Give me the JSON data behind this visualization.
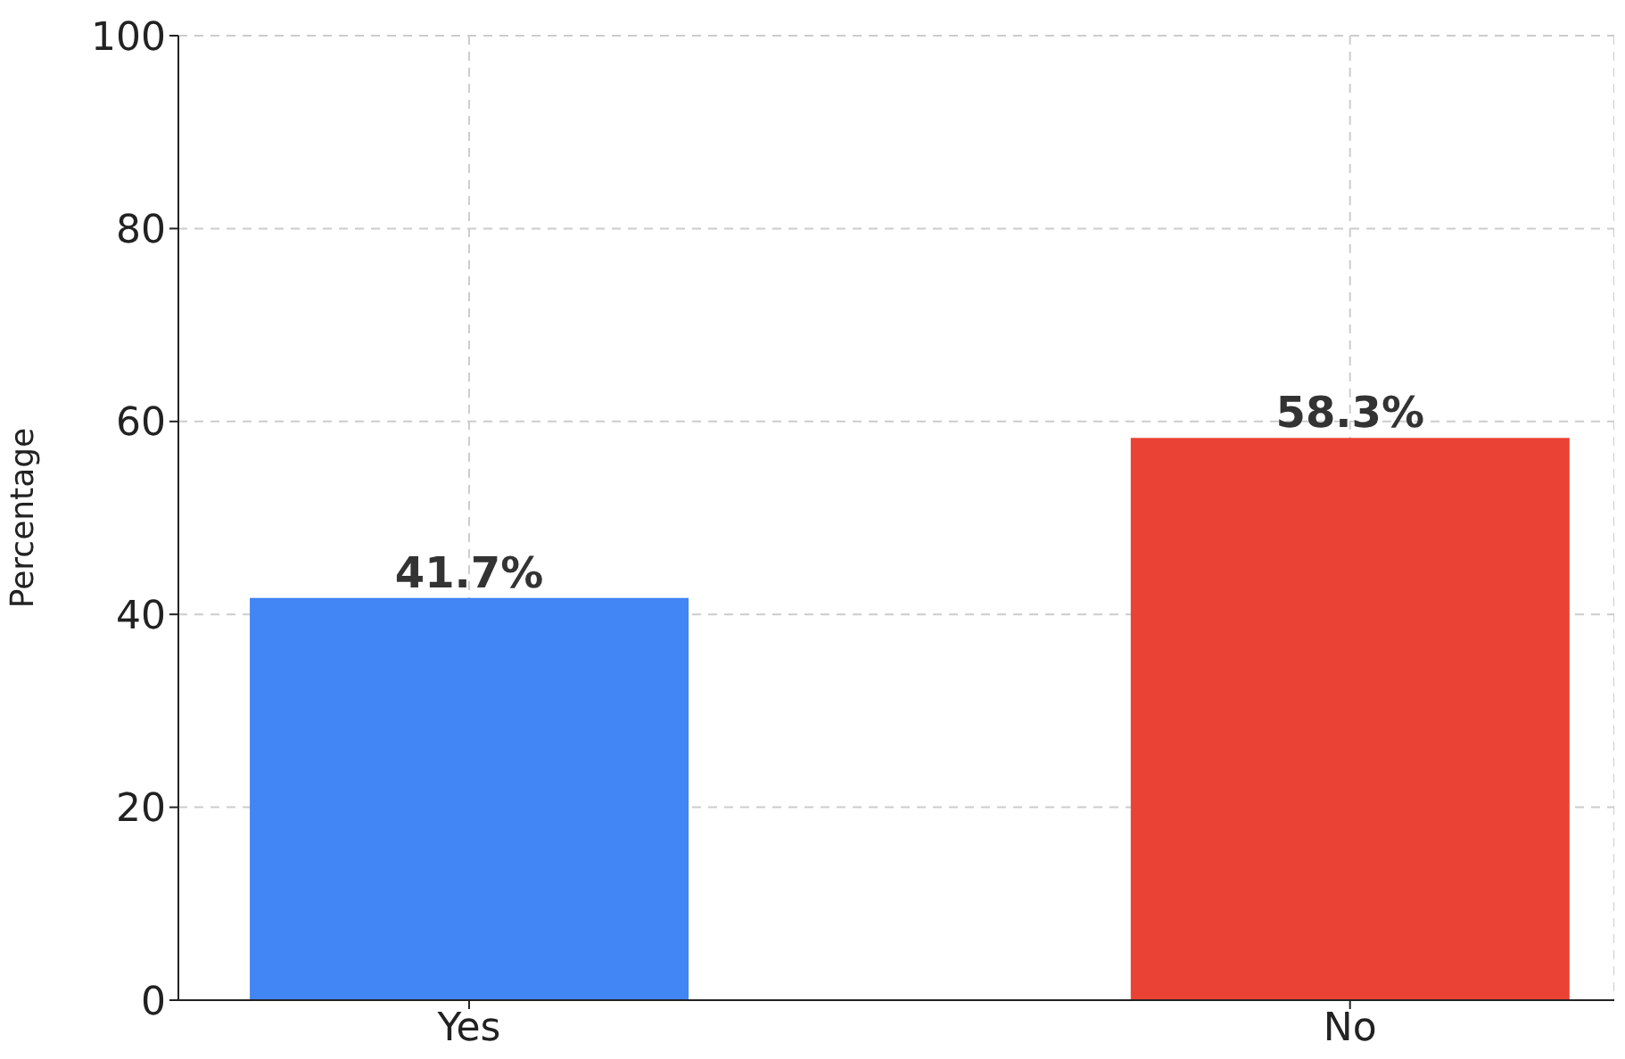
{
  "chart_data": {
    "type": "bar",
    "ylabel": "Percentage",
    "categories": [
      "Yes",
      "No"
    ],
    "values": [
      41.7,
      58.3
    ],
    "colors": [
      "#4285f4",
      "#ea4335"
    ],
    "value_labels": [
      "41.7%",
      "58.3%"
    ],
    "ylim": [
      0,
      100
    ],
    "yticks": [
      0,
      20,
      40,
      60,
      80,
      100
    ],
    "grid": true
  }
}
